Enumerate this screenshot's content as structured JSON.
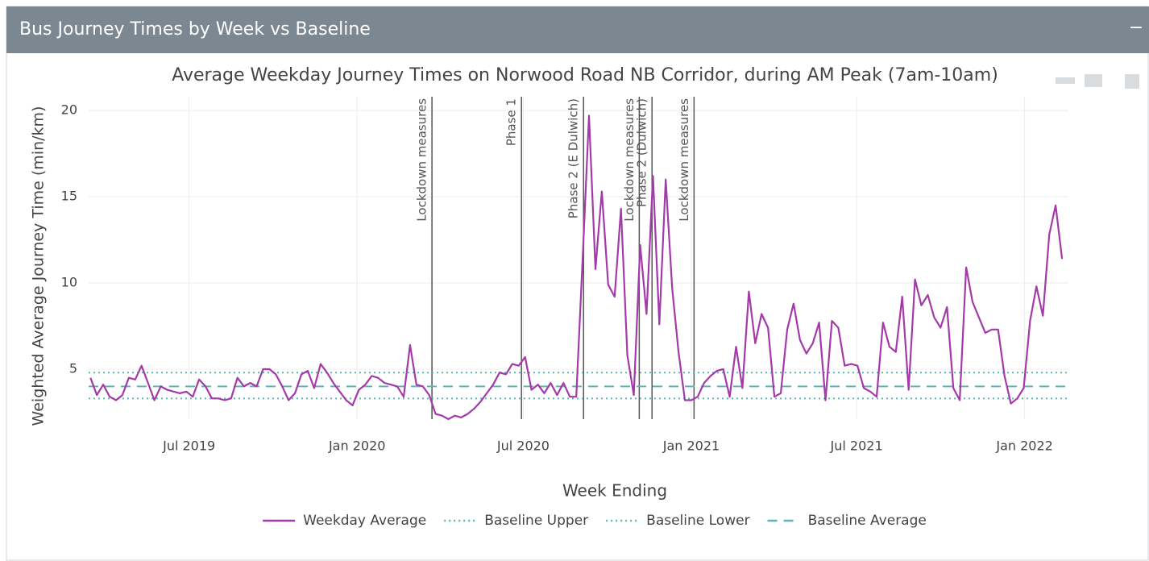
{
  "panel": {
    "title": "Bus Journey Times by Week vs Baseline",
    "collapse": "−"
  },
  "chart_data": {
    "type": "line",
    "title": "Average Weekday Journey Times on Norwood Road NB Corridor, during AM Peak (7am-10am)",
    "xlabel": "Week Ending",
    "ylabel": "Weighted Average Journey Time (min/km)",
    "x": [
      "2019-03-15",
      "2019-03-22",
      "2019-03-29",
      "2019-04-05",
      "2019-04-12",
      "2019-04-19",
      "2019-04-26",
      "2019-05-03",
      "2019-05-10",
      "2019-05-17",
      "2019-05-24",
      "2019-05-31",
      "2019-06-07",
      "2019-06-14",
      "2019-06-21",
      "2019-06-28",
      "2019-07-05",
      "2019-07-12",
      "2019-07-19",
      "2019-07-26",
      "2019-08-02",
      "2019-08-09",
      "2019-08-16",
      "2019-08-23",
      "2019-08-30",
      "2019-09-06",
      "2019-09-13",
      "2019-09-20",
      "2019-09-27",
      "2019-10-04",
      "2019-10-11",
      "2019-10-18",
      "2019-10-25",
      "2019-11-01",
      "2019-11-08",
      "2019-11-15",
      "2019-11-22",
      "2019-11-29",
      "2019-12-06",
      "2019-12-13",
      "2019-12-20",
      "2019-12-27",
      "2020-01-03",
      "2020-01-10",
      "2020-01-17",
      "2020-01-24",
      "2020-01-31",
      "2020-02-07",
      "2020-02-14",
      "2020-02-21",
      "2020-02-28",
      "2020-03-06",
      "2020-03-13",
      "2020-03-20",
      "2020-03-27",
      "2020-04-03",
      "2020-04-10",
      "2020-04-17",
      "2020-04-24",
      "2020-05-01",
      "2020-05-08",
      "2020-05-15",
      "2020-05-22",
      "2020-05-29",
      "2020-06-05",
      "2020-06-12",
      "2020-06-19",
      "2020-06-26",
      "2020-07-03",
      "2020-07-10",
      "2020-07-17",
      "2020-07-24",
      "2020-07-31",
      "2020-08-07",
      "2020-08-14",
      "2020-08-21",
      "2020-08-28",
      "2020-09-04",
      "2020-09-11",
      "2020-09-18",
      "2020-09-25",
      "2020-10-02",
      "2020-10-09",
      "2020-10-16",
      "2020-10-23",
      "2020-10-30",
      "2020-11-06",
      "2020-11-13",
      "2020-11-20",
      "2020-11-27",
      "2020-12-04",
      "2020-12-11",
      "2020-12-18",
      "2020-12-25",
      "2021-01-01",
      "2021-01-08",
      "2021-01-15",
      "2021-01-22",
      "2021-01-29",
      "2021-02-05",
      "2021-02-12",
      "2021-02-19",
      "2021-02-26",
      "2021-03-05",
      "2021-03-12",
      "2021-03-19",
      "2021-03-26",
      "2021-04-02",
      "2021-04-09",
      "2021-04-16",
      "2021-04-23",
      "2021-04-30",
      "2021-05-07",
      "2021-05-14",
      "2021-05-21",
      "2021-05-28",
      "2021-06-04",
      "2021-06-11",
      "2021-06-18",
      "2021-06-25",
      "2021-07-02",
      "2021-07-09",
      "2021-07-16",
      "2021-07-23",
      "2021-07-30",
      "2021-08-06",
      "2021-08-13",
      "2021-08-20",
      "2021-08-27",
      "2021-09-03",
      "2021-09-10",
      "2021-09-17",
      "2021-09-24",
      "2021-10-01",
      "2021-10-08",
      "2021-10-15",
      "2021-10-22",
      "2021-10-29",
      "2021-11-05",
      "2021-11-12",
      "2021-11-19",
      "2021-11-26",
      "2021-12-03",
      "2021-12-10",
      "2021-12-17",
      "2021-12-24",
      "2021-12-31",
      "2022-01-07",
      "2022-01-14",
      "2022-01-21",
      "2022-01-28",
      "2022-02-04",
      "2022-02-11"
    ],
    "series": [
      {
        "name": "Weekday Average",
        "color": "#a43aa9",
        "values": [
          4.5,
          3.5,
          4.1,
          3.4,
          3.2,
          3.5,
          4.5,
          4.4,
          5.2,
          4.2,
          3.2,
          4.0,
          3.8,
          3.7,
          3.6,
          3.7,
          3.4,
          4.4,
          4.0,
          3.3,
          3.3,
          3.2,
          3.3,
          4.5,
          4.0,
          4.2,
          4.0,
          5.0,
          5.0,
          4.7,
          4.0,
          3.2,
          3.6,
          4.7,
          4.9,
          3.9,
          5.3,
          4.8,
          4.2,
          3.7,
          3.2,
          2.9,
          3.8,
          4.1,
          4.6,
          4.5,
          4.2,
          4.1,
          4.0,
          3.4,
          6.4,
          4.1,
          4.0,
          3.5,
          2.4,
          2.3,
          2.1,
          2.3,
          2.2,
          2.4,
          2.7,
          3.1,
          3.6,
          4.1,
          4.8,
          4.7,
          5.3,
          5.2,
          5.7,
          3.8,
          4.1,
          3.6,
          4.2,
          3.5,
          4.2,
          3.4,
          3.4,
          11.4,
          19.7,
          10.8,
          15.3,
          9.9,
          9.2,
          14.3,
          5.8,
          3.5,
          12.2,
          8.2,
          16.2,
          7.6,
          16.0,
          9.7,
          6.0,
          3.2,
          3.2,
          3.4,
          4.2,
          4.6,
          4.9,
          5.0,
          3.4,
          6.3,
          3.9,
          9.5,
          6.5,
          8.2,
          7.4,
          3.4,
          3.6,
          7.3,
          8.8,
          6.7,
          5.9,
          6.5,
          7.7,
          3.2,
          7.8,
          7.4,
          5.2,
          5.3,
          5.2,
          3.9,
          3.7,
          3.4,
          7.7,
          6.3,
          6.0,
          9.2,
          3.8,
          10.2,
          8.7,
          9.3,
          8.0,
          7.4,
          8.6,
          3.9,
          3.2,
          10.9,
          8.9,
          8.0,
          7.1,
          7.3,
          7.3,
          4.6,
          3.0,
          3.3,
          3.9,
          7.8,
          9.8,
          8.1,
          12.8,
          14.5,
          11.4
        ]
      }
    ],
    "baselines": [
      {
        "name": "Baseline Upper",
        "value": 4.8,
        "color": "#5fb5b5",
        "dash": "dot"
      },
      {
        "name": "Baseline Lower",
        "value": 3.3,
        "color": "#5fb5b5",
        "dash": "dot"
      },
      {
        "name": "Baseline Average",
        "value": 4.0,
        "color": "#5fb5b5",
        "dash": "dash"
      }
    ],
    "events": [
      {
        "x": "2020-03-23",
        "label": "Lockdown measures"
      },
      {
        "x": "2020-06-29",
        "label": "Phase 1"
      },
      {
        "x": "2020-09-05",
        "label": "Phase 2 (E Dulwich)"
      },
      {
        "x": "2020-11-05",
        "label": "Lockdown measures"
      },
      {
        "x": "2020-11-19",
        "label": "Phase 2 (Dulwich)"
      },
      {
        "x": "2021-01-04",
        "label": "Lockdown measures"
      }
    ],
    "xlim": [
      "2019-03-13",
      "2022-02-18"
    ],
    "xticks": [
      {
        "value": "2019-07-01",
        "label": "Jul 2019"
      },
      {
        "value": "2020-01-01",
        "label": "Jan 2020"
      },
      {
        "value": "2020-07-01",
        "label": "Jul 2020"
      },
      {
        "value": "2021-01-01",
        "label": "Jan 2021"
      },
      {
        "value": "2021-07-01",
        "label": "Jul 2021"
      },
      {
        "value": "2022-01-01",
        "label": "Jan 2022"
      }
    ],
    "ylim": [
      2.1,
      20.8
    ],
    "yticks": [
      5,
      10,
      15,
      20
    ],
    "grid": true,
    "legend": "bottom"
  }
}
